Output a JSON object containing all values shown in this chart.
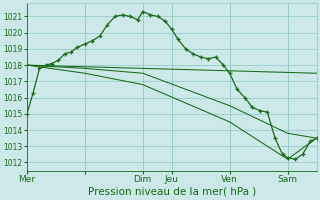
{
  "bg_color": "#cce8e8",
  "grid_color": "#99cccc",
  "line_color": "#1a6b1a",
  "xlabel": "Pression niveau de la mer( hPa )",
  "xlabel_fontsize": 7.5,
  "ylim": [
    1011.5,
    1021.8
  ],
  "yticks": [
    1012,
    1013,
    1014,
    1015,
    1016,
    1017,
    1018,
    1019,
    1020,
    1021
  ],
  "xlim": [
    0,
    23
  ],
  "xtick_positions": [
    0,
    4.6,
    9.2,
    11.5,
    16.1,
    20.7
  ],
  "xtick_labels": [
    "Mer",
    "",
    "Dim",
    "Jeu",
    "Ven",
    "Sam"
  ],
  "vline_positions": [
    4.6,
    9.2,
    11.5,
    16.1,
    20.7
  ],
  "line1_x": [
    0,
    0.5,
    1.0,
    1.5,
    2.0,
    2.5,
    3.0,
    3.5,
    4.0,
    4.6,
    5.2,
    5.8,
    6.4,
    7.0,
    7.6,
    8.2,
    8.8,
    9.2,
    9.8,
    10.4,
    11.0,
    11.5,
    12.0,
    12.6,
    13.2,
    13.8,
    14.4,
    15.0,
    15.6,
    16.1,
    16.7,
    17.3,
    17.9,
    18.5,
    19.1,
    19.7,
    20.3,
    20.7,
    21.3,
    21.9,
    22.5,
    23.0
  ],
  "line1_y": [
    1015.0,
    1016.3,
    1017.8,
    1018.0,
    1018.1,
    1018.3,
    1018.7,
    1018.8,
    1019.1,
    1019.3,
    1019.5,
    1019.8,
    1020.5,
    1021.0,
    1021.1,
    1021.0,
    1020.8,
    1021.3,
    1021.1,
    1021.0,
    1020.7,
    1020.2,
    1019.6,
    1019.0,
    1018.7,
    1018.5,
    1018.4,
    1018.5,
    1018.0,
    1017.5,
    1016.5,
    1016.0,
    1015.4,
    1015.2,
    1015.1,
    1013.5,
    1012.5,
    1012.3,
    1012.2,
    1012.5,
    1013.3,
    1013.5
  ],
  "line2_x": [
    0,
    23
  ],
  "line2_y": [
    1018.0,
    1017.5
  ],
  "line3_x": [
    0,
    4.6,
    9.2,
    16.1,
    20.7,
    23
  ],
  "line3_y": [
    1018.0,
    1017.8,
    1017.5,
    1015.5,
    1013.8,
    1013.5
  ],
  "line4_x": [
    0,
    4.6,
    9.2,
    16.1,
    20.7,
    23
  ],
  "line4_y": [
    1018.0,
    1017.5,
    1016.8,
    1014.5,
    1012.2,
    1013.5
  ]
}
